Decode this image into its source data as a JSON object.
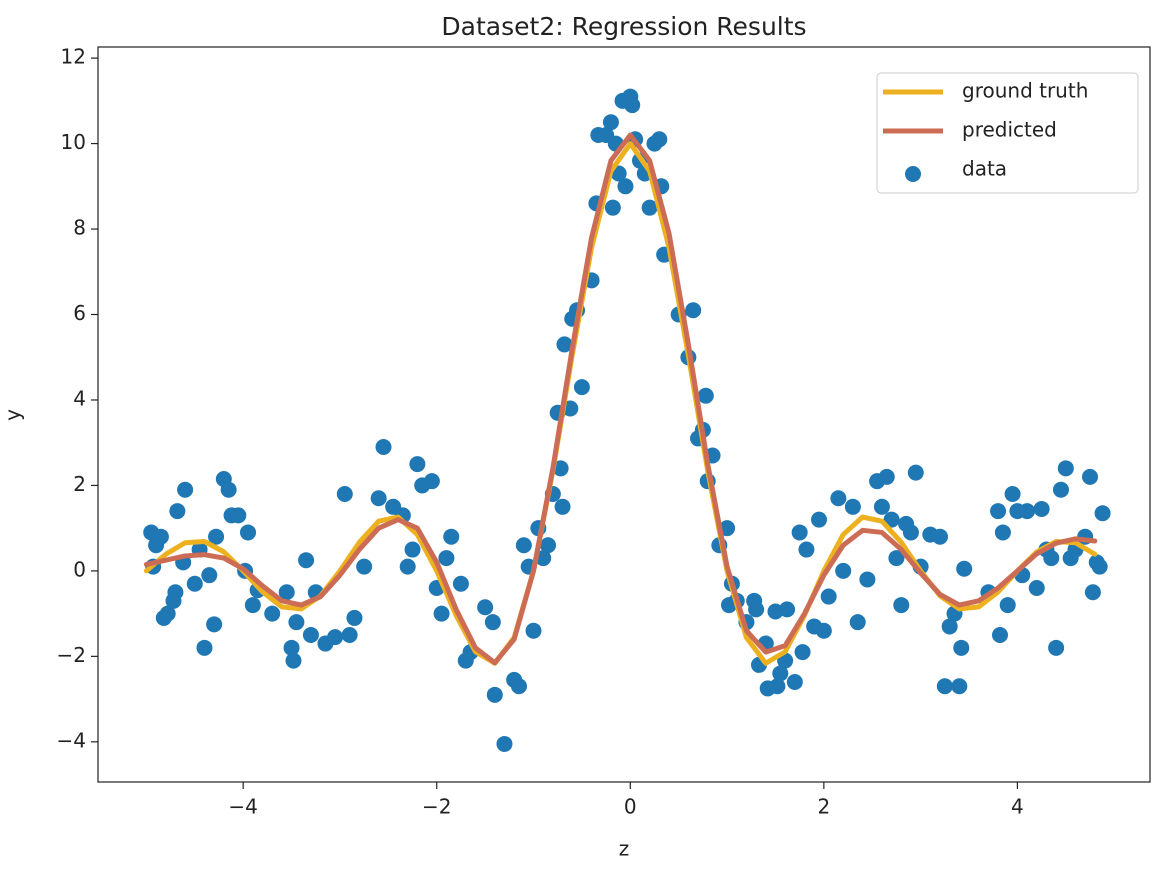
{
  "chart_data": {
    "type": "line-scatter",
    "title": "Dataset2: Regression Results",
    "x_label": "z",
    "y_label": "y",
    "xlim": [
      -5.5,
      5.37
    ],
    "ylim": [
      -4.94,
      12.26
    ],
    "xticks": [
      {
        "value": -4,
        "label": "−4"
      },
      {
        "value": -2,
        "label": "−2"
      },
      0,
      2,
      4
    ],
    "yticks": [
      {
        "value": -4,
        "label": "−4"
      },
      {
        "value": -2,
        "label": "−2"
      },
      0,
      2,
      4,
      6,
      8,
      10,
      12
    ],
    "legend": "upper right",
    "x": [
      -5.0,
      -4.8,
      -4.6,
      -4.4,
      -4.2,
      -4.0,
      -3.8,
      -3.6,
      -3.4,
      -3.2,
      -3.0,
      -2.8,
      -2.6,
      -2.4,
      -2.2,
      -2.0,
      -1.8,
      -1.6,
      -1.4,
      -1.2,
      -1.0,
      -0.8,
      -0.6,
      -0.4,
      -0.2,
      0.0,
      0.2,
      0.4,
      0.6,
      0.8,
      1.0,
      1.2,
      1.4,
      1.6,
      1.8,
      2.0,
      2.2,
      2.4,
      2.6,
      2.8,
      3.0,
      3.2,
      3.4,
      3.6,
      3.8,
      4.0,
      4.2,
      4.4,
      4.6,
      4.8
    ],
    "series": [
      {
        "name": "ground truth",
        "kind": "line",
        "color": "#edb120",
        "values": [
          0,
          0.39,
          0.658,
          0.688,
          0.445,
          0,
          -0.492,
          -0.841,
          -0.89,
          -0.585,
          0,
          0.668,
          1.164,
          1.261,
          0.85,
          0,
          -1.039,
          -1.892,
          -2.162,
          -1.559,
          0,
          2.339,
          5.046,
          7.568,
          9.355,
          10,
          9.355,
          7.568,
          5.046,
          2.339,
          0,
          -1.559,
          -2.162,
          -1.892,
          -1.039,
          0,
          0.85,
          1.261,
          1.164,
          0.668,
          0,
          -0.585,
          -0.89,
          -0.841,
          -0.492,
          0,
          0.445,
          0.688,
          0.658,
          0.39
        ]
      },
      {
        "name": "predicted",
        "kind": "line",
        "color": "#cc6c55",
        "values": [
          0.15,
          0.25,
          0.35,
          0.38,
          0.3,
          0.05,
          -0.35,
          -0.7,
          -0.8,
          -0.6,
          -0.1,
          0.5,
          1.0,
          1.2,
          1.0,
          0.2,
          -0.9,
          -1.8,
          -2.15,
          -1.6,
          0.0,
          2.4,
          5.2,
          7.8,
          9.6,
          10.2,
          9.6,
          7.9,
          5.3,
          2.5,
          0.1,
          -1.4,
          -1.9,
          -1.75,
          -1.0,
          -0.1,
          0.6,
          0.95,
          0.9,
          0.5,
          -0.05,
          -0.55,
          -0.8,
          -0.7,
          -0.4,
          0.0,
          0.4,
          0.65,
          0.75,
          0.7
        ]
      },
      {
        "name": "data",
        "kind": "scatter",
        "color": "#1f77b4",
        "x": [
          -4.95,
          -4.93,
          -4.9,
          -4.85,
          -4.82,
          -4.78,
          -4.72,
          -4.7,
          -4.68,
          -4.62,
          -4.6,
          -4.5,
          -4.45,
          -4.4,
          -4.35,
          -4.3,
          -4.28,
          -4.2,
          -4.15,
          -4.12,
          -4.05,
          -3.98,
          -3.95,
          -3.9,
          -3.85,
          -3.7,
          -3.55,
          -3.5,
          -3.48,
          -3.45,
          -3.35,
          -3.3,
          -3.25,
          -3.15,
          -3.05,
          -2.95,
          -2.9,
          -2.85,
          -2.75,
          -2.6,
          -2.55,
          -2.45,
          -2.35,
          -2.3,
          -2.25,
          -2.2,
          -2.15,
          -2.05,
          -2.0,
          -1.95,
          -1.9,
          -1.85,
          -1.75,
          -1.7,
          -1.65,
          -1.5,
          -1.42,
          -1.4,
          -1.3,
          -1.2,
          -1.15,
          -1.1,
          -1.05,
          -1.0,
          -0.95,
          -0.9,
          -0.85,
          -0.8,
          -0.75,
          -0.72,
          -0.7,
          -0.68,
          -0.62,
          -0.6,
          -0.55,
          -0.5,
          -0.4,
          -0.35,
          -0.33,
          -0.25,
          -0.2,
          -0.18,
          -0.15,
          -0.12,
          -0.08,
          -0.05,
          0.0,
          0.02,
          0.05,
          0.1,
          0.15,
          0.2,
          0.25,
          0.3,
          0.32,
          0.35,
          0.5,
          0.6,
          0.65,
          0.7,
          0.75,
          0.78,
          0.8,
          0.85,
          0.92,
          1.0,
          1.02,
          1.05,
          1.1,
          1.2,
          1.28,
          1.3,
          1.33,
          1.4,
          1.42,
          1.5,
          1.52,
          1.55,
          1.6,
          1.62,
          1.7,
          1.75,
          1.78,
          1.82,
          1.9,
          1.95,
          2.0,
          2.05,
          2.15,
          2.2,
          2.3,
          2.35,
          2.45,
          2.55,
          2.6,
          2.65,
          2.7,
          2.75,
          2.8,
          2.85,
          2.9,
          2.95,
          3.0,
          3.1,
          3.2,
          3.25,
          3.3,
          3.35,
          3.4,
          3.42,
          3.45,
          3.7,
          3.8,
          3.82,
          3.85,
          3.9,
          3.95,
          4.0,
          4.05,
          4.1,
          4.2,
          4.25,
          4.3,
          4.35,
          4.4,
          4.45,
          4.5,
          4.55,
          4.6,
          4.7,
          4.75,
          4.78,
          4.82,
          4.85,
          4.88
        ],
        "values": [
          0.9,
          0.1,
          0.6,
          0.8,
          -1.1,
          -1.0,
          -0.7,
          -0.5,
          1.4,
          0.2,
          1.9,
          -0.3,
          0.5,
          -1.8,
          -0.1,
          -1.25,
          0.8,
          2.15,
          1.9,
          1.3,
          1.3,
          0.0,
          0.9,
          -0.8,
          -0.45,
          -1.0,
          -0.5,
          -1.8,
          -2.1,
          -1.2,
          0.25,
          -1.5,
          -0.5,
          -1.7,
          -1.55,
          1.8,
          -1.5,
          -1.1,
          0.1,
          1.7,
          2.9,
          1.5,
          1.3,
          0.1,
          0.5,
          2.5,
          2.0,
          2.1,
          -0.4,
          -1.0,
          0.3,
          0.8,
          -0.3,
          -2.1,
          -1.9,
          -0.85,
          -1.2,
          -2.9,
          -4.05,
          -2.55,
          -2.7,
          0.6,
          0.1,
          -1.4,
          1.0,
          0.3,
          0.6,
          1.8,
          3.7,
          2.4,
          1.5,
          5.3,
          3.8,
          5.9,
          6.1,
          4.3,
          6.8,
          8.6,
          10.2,
          10.2,
          10.5,
          8.5,
          10.0,
          9.3,
          11.0,
          9.0,
          11.1,
          10.9,
          10.1,
          9.6,
          9.3,
          8.5,
          10.0,
          10.1,
          9.0,
          7.4,
          6.0,
          5.0,
          6.1,
          3.1,
          3.3,
          4.1,
          2.1,
          2.7,
          0.6,
          1.0,
          -0.8,
          -0.3,
          -0.7,
          -1.2,
          -0.7,
          -0.9,
          -2.2,
          -1.7,
          -2.75,
          -0.95,
          -2.7,
          -2.4,
          -2.1,
          -0.9,
          -2.6,
          0.9,
          -1.9,
          0.5,
          -1.3,
          1.2,
          -1.4,
          -0.6,
          1.7,
          0.0,
          1.5,
          -1.2,
          -0.2,
          2.1,
          1.5,
          2.2,
          1.2,
          0.3,
          -0.8,
          1.1,
          0.9,
          2.3,
          0.1,
          0.85,
          0.8,
          -2.7,
          -1.3,
          -1.0,
          -2.7,
          -1.8,
          0.05,
          -0.5,
          1.4,
          -1.5,
          0.9,
          -0.8,
          1.8,
          1.4,
          -0.1,
          1.4,
          -0.4,
          1.45,
          0.5,
          0.3,
          -1.8,
          1.9,
          2.4,
          0.3,
          0.5,
          0.8,
          2.2,
          -0.5,
          0.2,
          0.1,
          1.35
        ]
      }
    ]
  }
}
